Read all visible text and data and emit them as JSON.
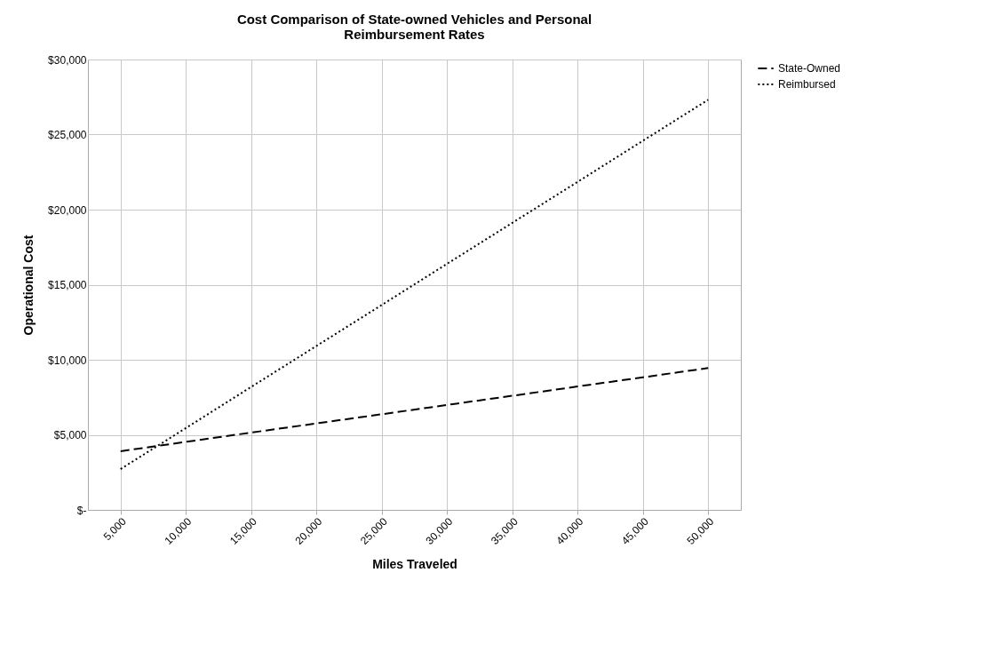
{
  "chart_data": {
    "type": "line",
    "title": "Cost Comparison of State-owned Vehicles and Personal Reimbursement Rates",
    "xlabel": "Miles Traveled",
    "ylabel": "Operational Cost",
    "categories": [
      "5,000",
      "10,000",
      "15,000",
      "20,000",
      "25,000",
      "30,000",
      "35,000",
      "40,000",
      "45,000",
      "50,000"
    ],
    "series": [
      {
        "name": "State-Owned",
        "color": "#000000",
        "line_style": "dashed",
        "values": [
          3910,
          4530,
          5150,
          5760,
          6370,
          6990,
          7600,
          8220,
          8830,
          9450
        ]
      },
      {
        "name": "Reimbursed",
        "color": "#000000",
        "line_style": "dotted",
        "values": [
          2720,
          5450,
          8190,
          10920,
          13650,
          16390,
          19120,
          21850,
          24590,
          27320
        ]
      }
    ],
    "ylim": [
      0,
      30000
    ],
    "yticks": [
      {
        "value": 0,
        "label": "$-"
      },
      {
        "value": 5000,
        "label": "$5,000"
      },
      {
        "value": 10000,
        "label": "$10,000"
      },
      {
        "value": 15000,
        "label": "$15,000"
      },
      {
        "value": 20000,
        "label": "$20,000"
      },
      {
        "value": 25000,
        "label": "$25,000"
      },
      {
        "value": 30000,
        "label": "$30,000"
      }
    ],
    "grid": true,
    "legend": "right",
    "marker": "none"
  }
}
